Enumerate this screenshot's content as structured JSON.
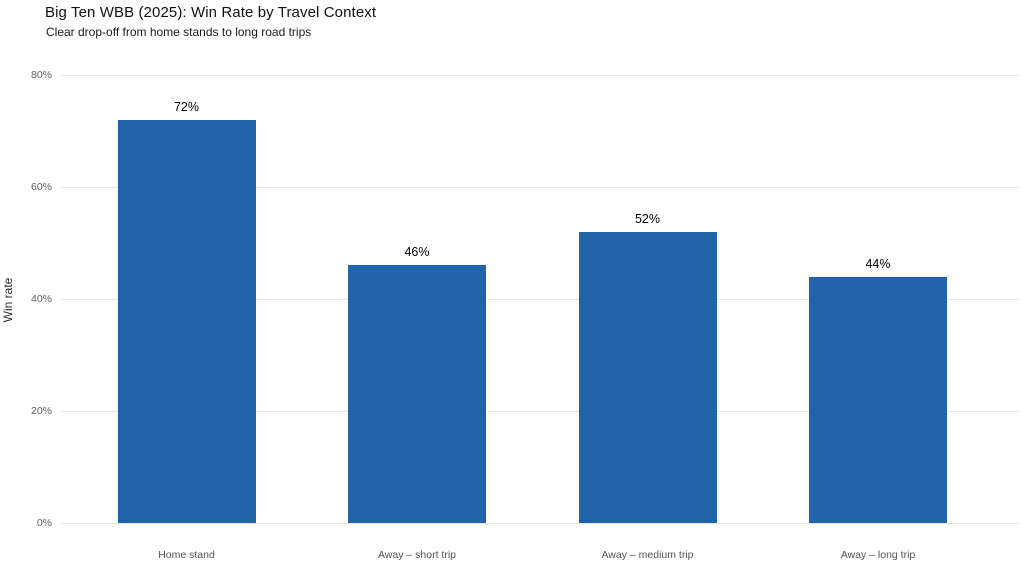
{
  "chart_data": {
    "type": "bar",
    "title": "Big Ten WBB (2025): Win Rate by Travel Context",
    "subtitle": "Clear drop-off from home stands to long road trips",
    "xlabel": "",
    "ylabel": "Win rate",
    "categories": [
      "Home stand",
      "Away – short trip",
      "Away – medium trip",
      "Away – long trip"
    ],
    "values": [
      72,
      46,
      52,
      44
    ],
    "value_labels": [
      "72%",
      "46%",
      "52%",
      "44%"
    ],
    "ylim": [
      0,
      80
    ],
    "yticks": [
      0,
      20,
      40,
      60,
      80
    ],
    "ytick_labels": [
      "0%",
      "20%",
      "40%",
      "60%",
      "80%"
    ],
    "grid": true,
    "legend": false,
    "colors": {
      "bar": "#1f64a8",
      "gridline": "#e6e6e6",
      "y_tick_text": "#5f5f5f",
      "x_tick_text": "#555555",
      "value_label_text": "#000000",
      "title_text": "#111111",
      "background": "#ffffff"
    }
  }
}
